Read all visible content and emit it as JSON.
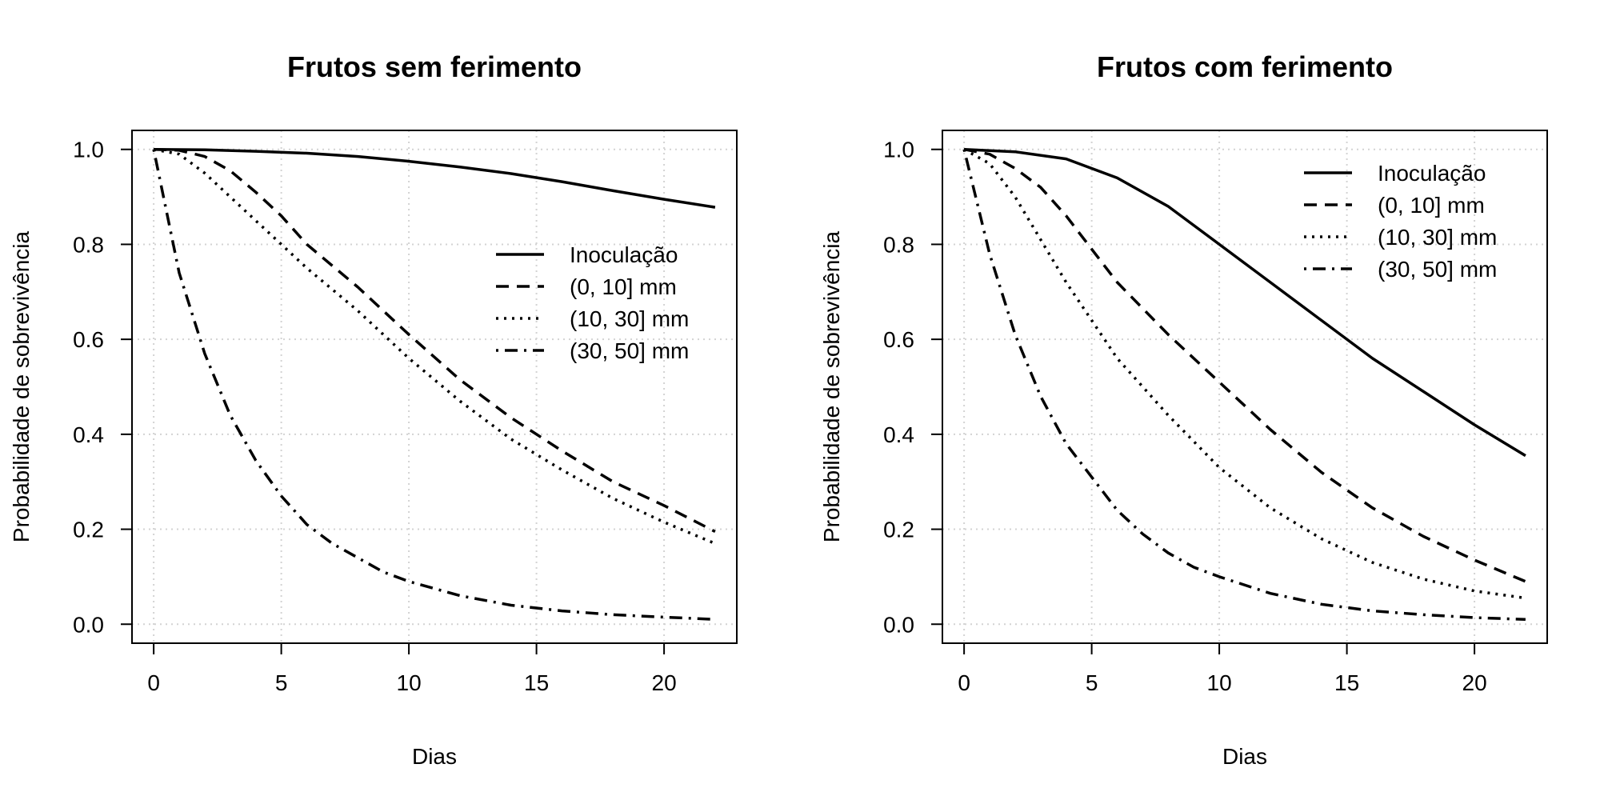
{
  "chart_data": [
    {
      "type": "line",
      "title": "Frutos sem ferimento",
      "xlabel": "Dias",
      "ylabel": "Probabilidade de sobrevivência",
      "xlim": [
        -0.85,
        22.85
      ],
      "ylim": [
        -0.04,
        1.04
      ],
      "xticks": [
        0,
        5,
        10,
        15,
        20
      ],
      "yticks": [
        0.0,
        0.2,
        0.4,
        0.6,
        0.8,
        1.0
      ],
      "xtick_labels": [
        "0",
        "5",
        "10",
        "15",
        "20"
      ],
      "ytick_labels": [
        "0.0",
        "0.2",
        "0.4",
        "0.6",
        "0.8",
        "1.0"
      ],
      "grid": true,
      "legend_position": "middle-right",
      "series": [
        {
          "name": "Inoculação",
          "style": "solid",
          "x": [
            0,
            2,
            4,
            6,
            8,
            10,
            12,
            14,
            16,
            18,
            20,
            22
          ],
          "values": [
            1.0,
            0.999,
            0.996,
            0.992,
            0.985,
            0.975,
            0.963,
            0.949,
            0.932,
            0.913,
            0.895,
            0.878
          ]
        },
        {
          "name": "(0, 10] mm",
          "style": "dashed",
          "x": [
            0,
            1,
            2,
            3,
            4,
            5,
            6,
            8,
            10,
            12,
            14,
            16,
            18,
            20,
            22
          ],
          "values": [
            1.0,
            0.998,
            0.985,
            0.955,
            0.91,
            0.86,
            0.8,
            0.71,
            0.61,
            0.515,
            0.435,
            0.365,
            0.3,
            0.25,
            0.195
          ]
        },
        {
          "name": "(10, 30] mm",
          "style": "dotted",
          "x": [
            0,
            1,
            2,
            3,
            4,
            5,
            6,
            8,
            10,
            12,
            14,
            16,
            18,
            20,
            22
          ],
          "values": [
            1.0,
            0.99,
            0.95,
            0.9,
            0.85,
            0.8,
            0.75,
            0.66,
            0.56,
            0.47,
            0.39,
            0.325,
            0.265,
            0.215,
            0.17
          ]
        },
        {
          "name": "(30, 50] mm",
          "style": "dotdash",
          "x": [
            0,
            1,
            2,
            3,
            4,
            5,
            6,
            7,
            8,
            9,
            10,
            12,
            14,
            16,
            18,
            20,
            22
          ],
          "values": [
            1.0,
            0.74,
            0.57,
            0.44,
            0.345,
            0.27,
            0.21,
            0.17,
            0.14,
            0.11,
            0.09,
            0.06,
            0.04,
            0.028,
            0.02,
            0.015,
            0.01
          ]
        }
      ]
    },
    {
      "type": "line",
      "title": "Frutos com ferimento",
      "xlabel": "Dias",
      "ylabel": "Probabilidade de sobrevivência",
      "xlim": [
        -0.85,
        22.85
      ],
      "ylim": [
        -0.04,
        1.04
      ],
      "xticks": [
        0,
        5,
        10,
        15,
        20
      ],
      "yticks": [
        0.0,
        0.2,
        0.4,
        0.6,
        0.8,
        1.0
      ],
      "xtick_labels": [
        "0",
        "5",
        "10",
        "15",
        "20"
      ],
      "ytick_labels": [
        "0.0",
        "0.2",
        "0.4",
        "0.6",
        "0.8",
        "1.0"
      ],
      "grid": true,
      "legend_position": "top-right",
      "series": [
        {
          "name": "Inoculação",
          "style": "solid",
          "x": [
            0,
            2,
            4,
            6,
            8,
            10,
            12,
            14,
            16,
            18,
            20,
            22
          ],
          "values": [
            1.0,
            0.995,
            0.98,
            0.94,
            0.88,
            0.8,
            0.72,
            0.64,
            0.56,
            0.49,
            0.42,
            0.355
          ]
        },
        {
          "name": "(0, 10] mm",
          "style": "dashed",
          "x": [
            0,
            1,
            2,
            3,
            4,
            5,
            6,
            8,
            10,
            12,
            14,
            16,
            18,
            20,
            22
          ],
          "values": [
            1.0,
            0.99,
            0.96,
            0.92,
            0.86,
            0.79,
            0.72,
            0.61,
            0.51,
            0.41,
            0.32,
            0.245,
            0.185,
            0.135,
            0.09
          ]
        },
        {
          "name": "(10, 30] mm",
          "style": "dotted",
          "x": [
            0,
            1,
            2,
            3,
            4,
            5,
            6,
            8,
            10,
            12,
            14,
            16,
            18,
            20,
            22
          ],
          "values": [
            1.0,
            0.97,
            0.9,
            0.81,
            0.72,
            0.64,
            0.56,
            0.44,
            0.33,
            0.245,
            0.18,
            0.13,
            0.095,
            0.07,
            0.055
          ]
        },
        {
          "name": "(30, 50] mm",
          "style": "dotdash",
          "x": [
            0,
            1,
            2,
            3,
            4,
            5,
            6,
            7,
            8,
            9,
            10,
            12,
            14,
            16,
            18,
            20,
            22
          ],
          "values": [
            1.0,
            0.78,
            0.61,
            0.48,
            0.38,
            0.31,
            0.24,
            0.19,
            0.15,
            0.12,
            0.1,
            0.065,
            0.042,
            0.028,
            0.02,
            0.014,
            0.01
          ]
        }
      ]
    }
  ]
}
